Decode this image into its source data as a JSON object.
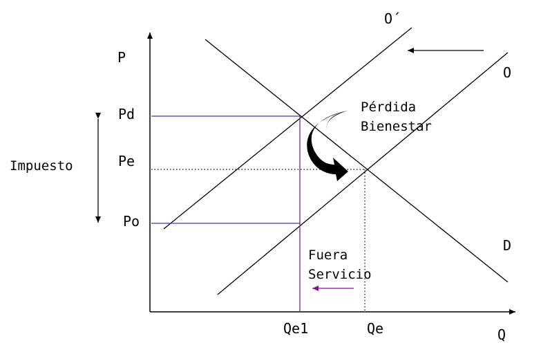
{
  "axes": {
    "y_label": "P",
    "x_label": "Q"
  },
  "curves": {
    "supply_shifted": "O´",
    "supply": "O",
    "demand": "D"
  },
  "prices": {
    "pd": "Pd",
    "pe": "Pe",
    "po": "Po"
  },
  "quantities": {
    "qe1": "Qe1",
    "qe": "Qe"
  },
  "tax_label": "Impuesto",
  "welfare_loss": {
    "line1": "Pérdida",
    "line2": "Bienestar"
  },
  "out_of_service": {
    "line1": "Fuera",
    "line2": "Servicio"
  },
  "colors": {
    "axis": "#000000",
    "price_guides": "#3a3aa8",
    "quantity_guide": "#7a1a86",
    "arrow_left": "#7a1a86"
  }
}
